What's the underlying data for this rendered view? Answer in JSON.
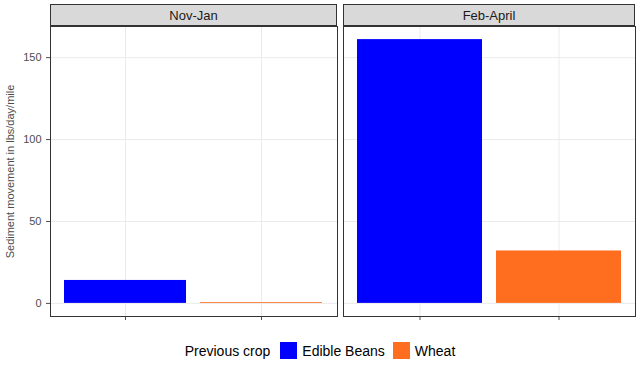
{
  "chart_data": {
    "type": "bar",
    "categories": [
      "Nov-Jan",
      "Feb-April"
    ],
    "y_label": "Sediment movement in lbs/day/mile",
    "series": [
      {
        "name": "Edible Beans",
        "color": "#0000ff",
        "values": [
          14,
          161
        ]
      },
      {
        "name": "Wheat",
        "color": "#ff6d1f",
        "values": [
          0.5,
          32
        ]
      }
    ],
    "legend_title": "Previous crop",
    "legend": "bottom",
    "ylim": [
      -8,
      169
    ],
    "yticks": [
      0,
      50,
      100,
      150
    ],
    "grid": true,
    "tick_labels": "y"
  }
}
